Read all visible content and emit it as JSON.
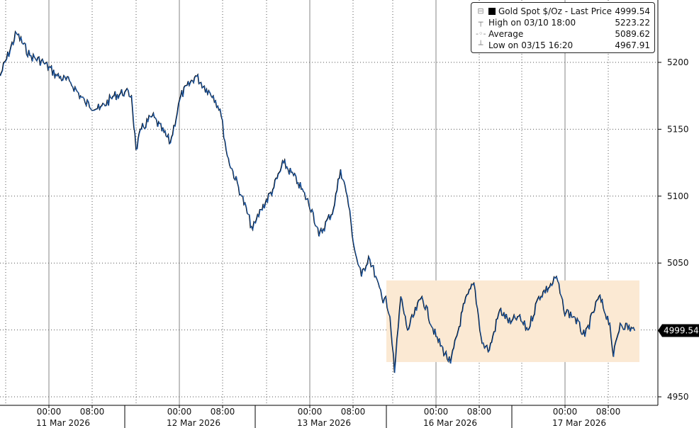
{
  "chart_data": {
    "type": "line",
    "legend": {
      "placement": "top-right",
      "entries": [
        {
          "label": "Gold Spot $/Oz - Last Price",
          "value": "4999.54",
          "icon": "black-square-icon"
        },
        {
          "label": "High on 03/10 18:00",
          "value": "5223.22",
          "icon": "high-marker-icon"
        },
        {
          "label": "Average",
          "value": "5089.62",
          "icon": "average-marker-icon"
        },
        {
          "label": "Low on 03/15 16:20",
          "value": "4967.91",
          "icon": "low-marker-icon"
        }
      ]
    },
    "last_price_flag": "4999.54",
    "y_axis": {
      "position": "right",
      "ylim": [
        4945,
        5247
      ],
      "ticks": [
        "5200",
        "5150",
        "5100",
        "5050",
        "4950"
      ]
    },
    "x_axis": {
      "time_ticks": [
        "00:00",
        "08:00"
      ],
      "days": [
        "11 Mar 2026",
        "12 Mar 2026",
        "13 Mar 2026",
        "16 Mar 2026",
        "17 Mar 2026"
      ]
    },
    "grid": true,
    "highlight_range": {
      "y": [
        4976,
        5037
      ],
      "x_from": "03/15 14:00",
      "x_to": "03/17 14:30",
      "color": "#fbe9d3"
    },
    "colors": {
      "line": "#000000",
      "line_overlay": "#2a6fc9"
    },
    "series": [
      {
        "name": "Gold Spot $/Oz - Last Price",
        "points": [
          [
            "03/10 15:00",
            5190
          ],
          [
            "03/10 18:00",
            5222
          ],
          [
            "03/10 20:30",
            5205
          ],
          [
            "03/10 23:00",
            5200
          ],
          [
            "03/11 01:30",
            5190
          ],
          [
            "03/11 04:00",
            5185
          ],
          [
            "03/11 06:40",
            5170
          ],
          [
            "03/11 09:20",
            5165
          ],
          [
            "03/11 12:00",
            5175
          ],
          [
            "03/11 14:00",
            5178
          ],
          [
            "03/11 15:10",
            5175
          ],
          [
            "03/11 16:00",
            5135
          ],
          [
            "03/11 17:00",
            5150
          ],
          [
            "03/11 19:00",
            5160
          ],
          [
            "03/11 22:20",
            5140
          ],
          [
            "03/12 00:15",
            5175
          ],
          [
            "03/12 03:00",
            5190
          ],
          [
            "03/12 05:00",
            5180
          ],
          [
            "03/12 06:15",
            5175
          ],
          [
            "03/12 07:30",
            5165
          ],
          [
            "03/12 08:50",
            5130
          ],
          [
            "03/12 11:30",
            5100
          ],
          [
            "03/12 13:30",
            5075
          ],
          [
            "03/12 14:00",
            5080
          ],
          [
            "03/12 15:00",
            5090
          ],
          [
            "03/12 17:10",
            5105
          ],
          [
            "03/12 19:10",
            5125
          ],
          [
            "03/12 21:50",
            5110
          ],
          [
            "03/13 00:25",
            5090
          ],
          [
            "03/13 01:40",
            5070
          ],
          [
            "03/13 04:20",
            5090
          ],
          [
            "03/13 05:40",
            5120
          ],
          [
            "03/13 06:55",
            5100
          ],
          [
            "03/13 08:15",
            5060
          ],
          [
            "03/13 09:30",
            5040
          ],
          [
            "03/13 10:50",
            5055
          ],
          [
            "03/13 12:10",
            5040
          ],
          [
            "03/13 13:30",
            5020
          ],
          [
            "03/13 14:00",
            5025
          ],
          [
            "03/15 15:30",
            5010
          ],
          [
            "03/15 16:20",
            4968
          ],
          [
            "03/15 17:30",
            5025
          ],
          [
            "03/15 18:45",
            5000
          ],
          [
            "03/15 21:25",
            5025
          ],
          [
            "03/16 00:00",
            4995
          ],
          [
            "03/16 02:40",
            4975
          ],
          [
            "03/16 05:15",
            5020
          ],
          [
            "03/16 07:00",
            5035
          ],
          [
            "03/16 08:30",
            4990
          ],
          [
            "03/16 09:50",
            4985
          ],
          [
            "03/16 11:45",
            5015
          ],
          [
            "03/16 13:45",
            5005
          ],
          [
            "03/16 15:15",
            5010
          ],
          [
            "03/16 17:10",
            5000
          ],
          [
            "03/16 19:10",
            5025
          ],
          [
            "03/16 21:45",
            5035
          ],
          [
            "03/16 22:25",
            5040
          ],
          [
            "03/16 23:45",
            5015
          ],
          [
            "03/17 01:40",
            5010
          ],
          [
            "03/17 03:40",
            4995
          ],
          [
            "03/17 06:15",
            5025
          ],
          [
            "03/17 08:15",
            5005
          ],
          [
            "03/17 08:55",
            4980
          ],
          [
            "03/17 10:10",
            5005
          ],
          [
            "03/17 12:50",
            4999.54
          ]
        ]
      }
    ]
  }
}
